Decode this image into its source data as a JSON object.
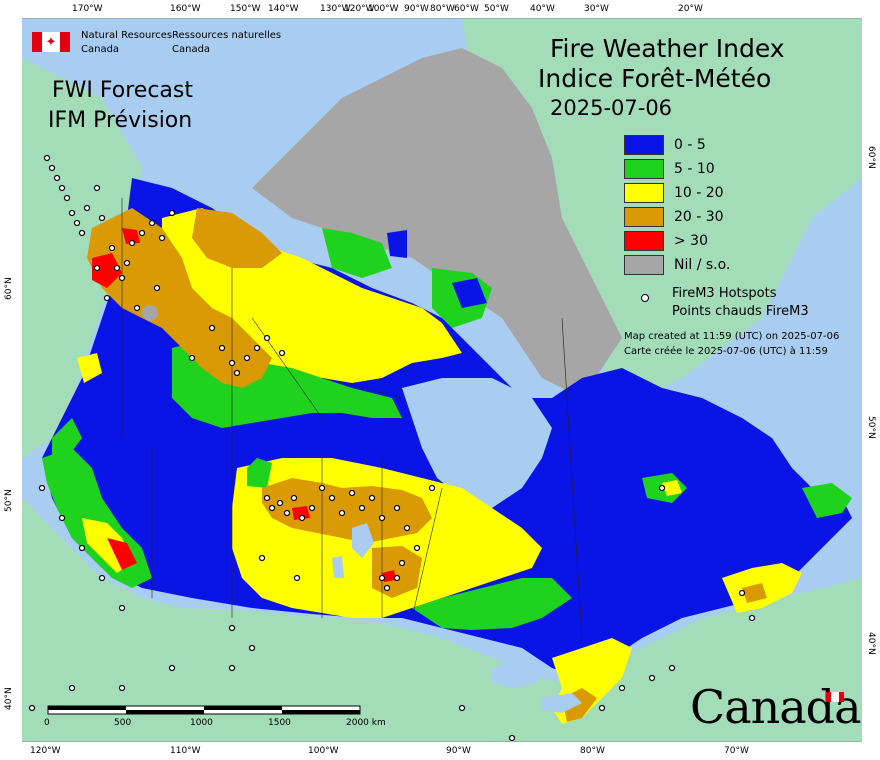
{
  "agency": {
    "en_line1": "Natural Resources",
    "en_line2": "Canada",
    "fr_line1": "Ressources naturelles",
    "fr_line2": "Canada"
  },
  "product": {
    "line1": "FWI Forecast",
    "line2": "IFM Prévision"
  },
  "title": {
    "line1": "Fire Weather Index",
    "line2": "Indice Forêt-Météo",
    "date": "2025-07-06"
  },
  "legend": {
    "items": [
      {
        "label": "0 - 5",
        "color": "#0a14e6"
      },
      {
        "label": "5 - 10",
        "color": "#1ed21e"
      },
      {
        "label": "10 - 20",
        "color": "#ffff00"
      },
      {
        "label": "20 - 30",
        "color": "#d99a06"
      },
      {
        "label": "> 30",
        "color": "#ff0000"
      },
      {
        "label": "Nil / s.o.",
        "color": "#a6a6a6"
      }
    ],
    "hotspot_en": "FireM3 Hotspots",
    "hotspot_fr": "Points chauds FireM3",
    "created_en": "Map created at 11:59 (UTC) on 2025-07-06",
    "created_fr": "Carte créée le 2025-07-06 (UTC) à 11:59"
  },
  "scale": {
    "labels": [
      "0",
      "500",
      "1000",
      "1500",
      "2000 km"
    ]
  },
  "wordmark": "Canada",
  "axes": {
    "top": [
      "170°W",
      "160°W",
      "150°W",
      "140°W",
      "130°W",
      "120°W",
      "100°W",
      "90°W",
      "80°W",
      "60°W",
      "50°W",
      "40°W",
      "30°W",
      "20°W"
    ],
    "bottom": [
      "120°W",
      "110°W",
      "100°W",
      "90°W",
      "80°W",
      "70°W"
    ],
    "left": [
      "60°N",
      "50°N",
      "40°N"
    ],
    "right": [
      "60°N",
      "50°N",
      "40°N"
    ]
  },
  "colors": {
    "ocean": "#a9cdf0",
    "land_outside": "#a3dcb9",
    "nil": "#a6a6a6",
    "water": "#a9cdf0"
  }
}
